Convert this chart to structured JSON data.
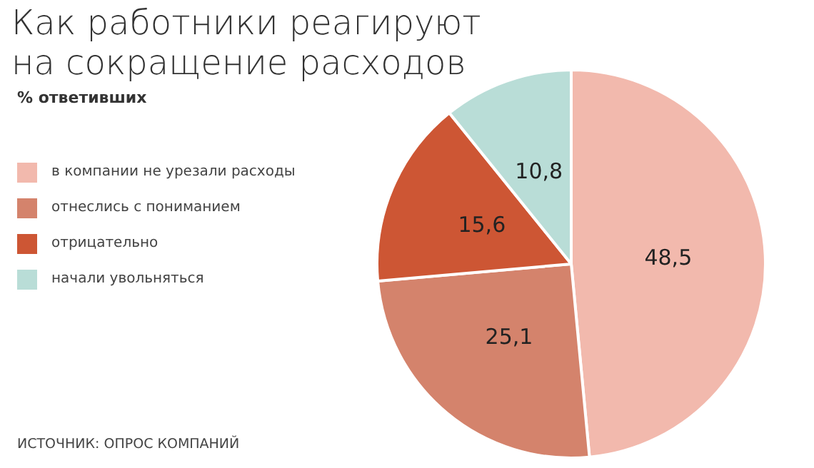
{
  "chart_data": {
    "type": "pie",
    "title": "Как работники реагируют на сокращение расходов",
    "subtitle": "% ответивших",
    "categories": [
      "в компании не урезали расходы",
      "отнеслись с пониманием",
      "отрицательно",
      "начали увольняться"
    ],
    "values": [
      48.5,
      25.1,
      15.6,
      10.8
    ],
    "value_labels": [
      "48,5",
      "25,1",
      "15,6",
      "10,8"
    ],
    "colors": [
      "#f2b9ad",
      "#d4836c",
      "#cd5634",
      "#b9ddd7"
    ],
    "legend": "left",
    "annotations": [
      "ИСТОЧНИК: ОПРОС КОМПАНИЙ"
    ]
  }
}
